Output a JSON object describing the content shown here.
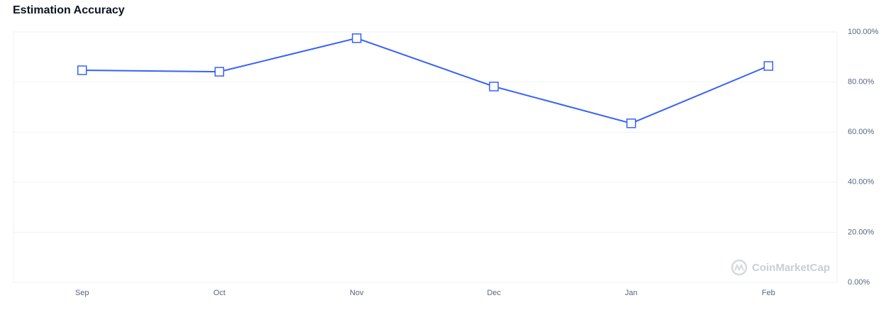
{
  "chart_data": {
    "type": "line",
    "title": "Estimation Accuracy",
    "categories": [
      "Sep",
      "Oct",
      "Nov",
      "Dec",
      "Jan",
      "Feb"
    ],
    "series": [
      {
        "name": "Estimation Accuracy",
        "color": "#3861fb",
        "values": [
          84.7,
          84.1,
          97.5,
          78.2,
          63.5,
          86.4
        ]
      }
    ],
    "ylim": [
      0,
      100
    ],
    "yticks": [
      {
        "value": 0,
        "label": "0.00%"
      },
      {
        "value": 20,
        "label": "20.00%"
      },
      {
        "value": 40,
        "label": "40.00%"
      },
      {
        "value": 60,
        "label": "60.00%"
      },
      {
        "value": 80,
        "label": "80.00%"
      },
      {
        "value": 100,
        "label": "100.00%"
      }
    ],
    "grid": true,
    "watermark": "CoinMarketCap"
  }
}
